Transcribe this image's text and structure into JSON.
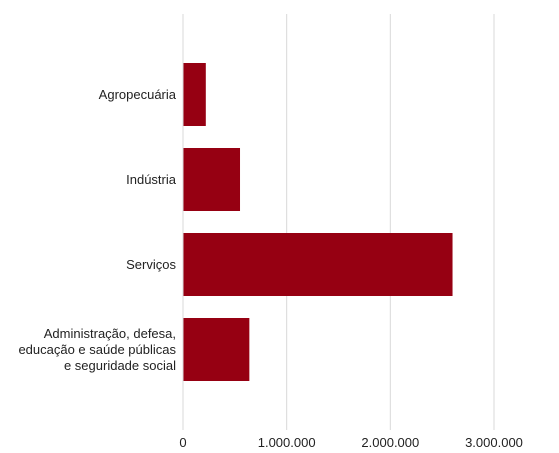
{
  "chart_data": {
    "type": "bar",
    "orientation": "horizontal",
    "categories": [
      [
        "Agropecuária"
      ],
      [
        "Indústria"
      ],
      [
        "Serviços"
      ],
      [
        "Administração, defesa,",
        "educação e saúde públicas",
        "e seguridade social"
      ]
    ],
    "values": [
      220000,
      550000,
      2600000,
      640000
    ],
    "xlim": [
      0,
      3000000
    ],
    "xticks": [
      0,
      1000000,
      2000000,
      3000000
    ],
    "xtick_labels": [
      "0",
      "1.000.000",
      "2.000.000",
      "3.000.000"
    ],
    "grid": true,
    "bar_color": "#960012",
    "grid_color": "#d9d9d9"
  }
}
